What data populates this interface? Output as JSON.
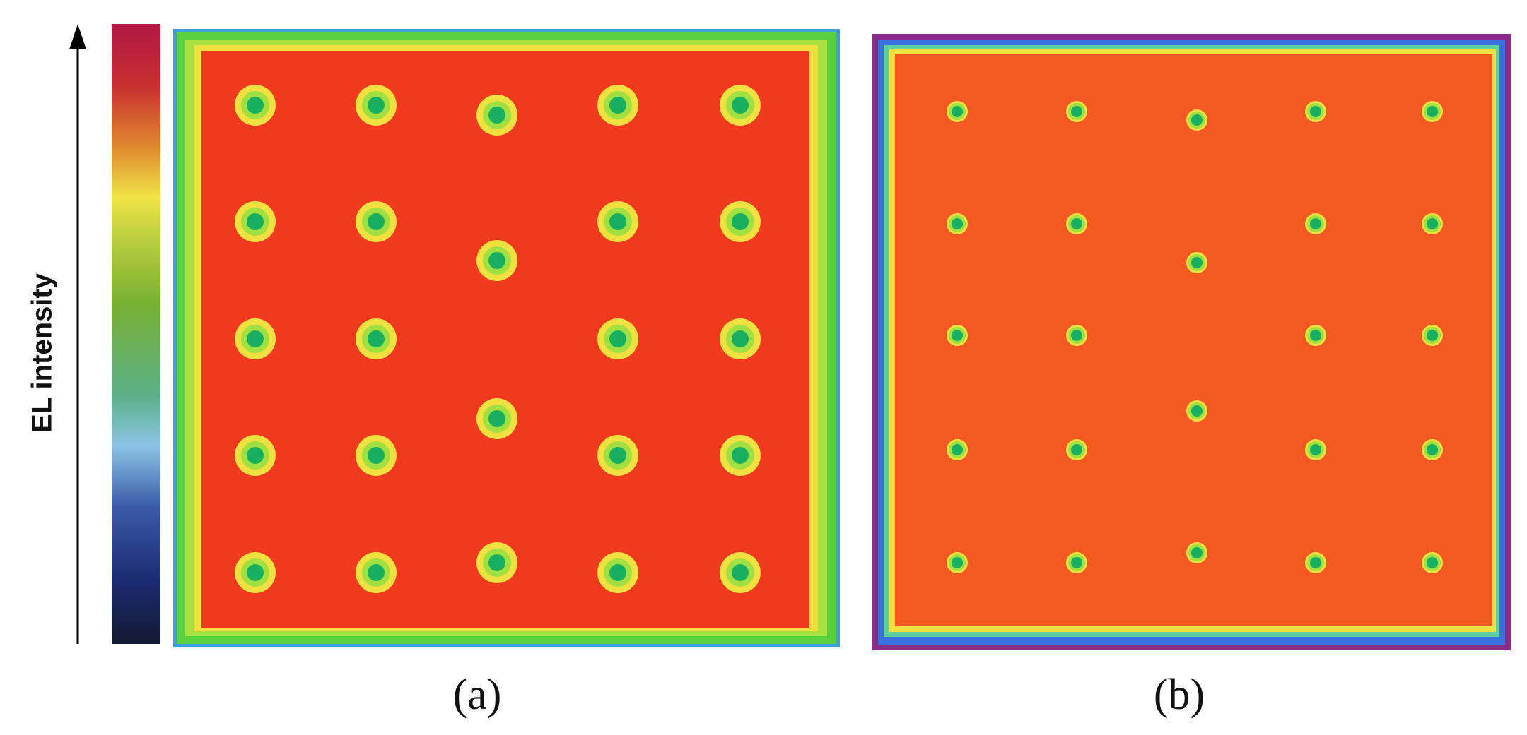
{
  "figure": {
    "colorbar_label": "EL intensity",
    "panels": [
      {
        "label": "(a)"
      },
      {
        "label": "(b)"
      }
    ]
  }
}
